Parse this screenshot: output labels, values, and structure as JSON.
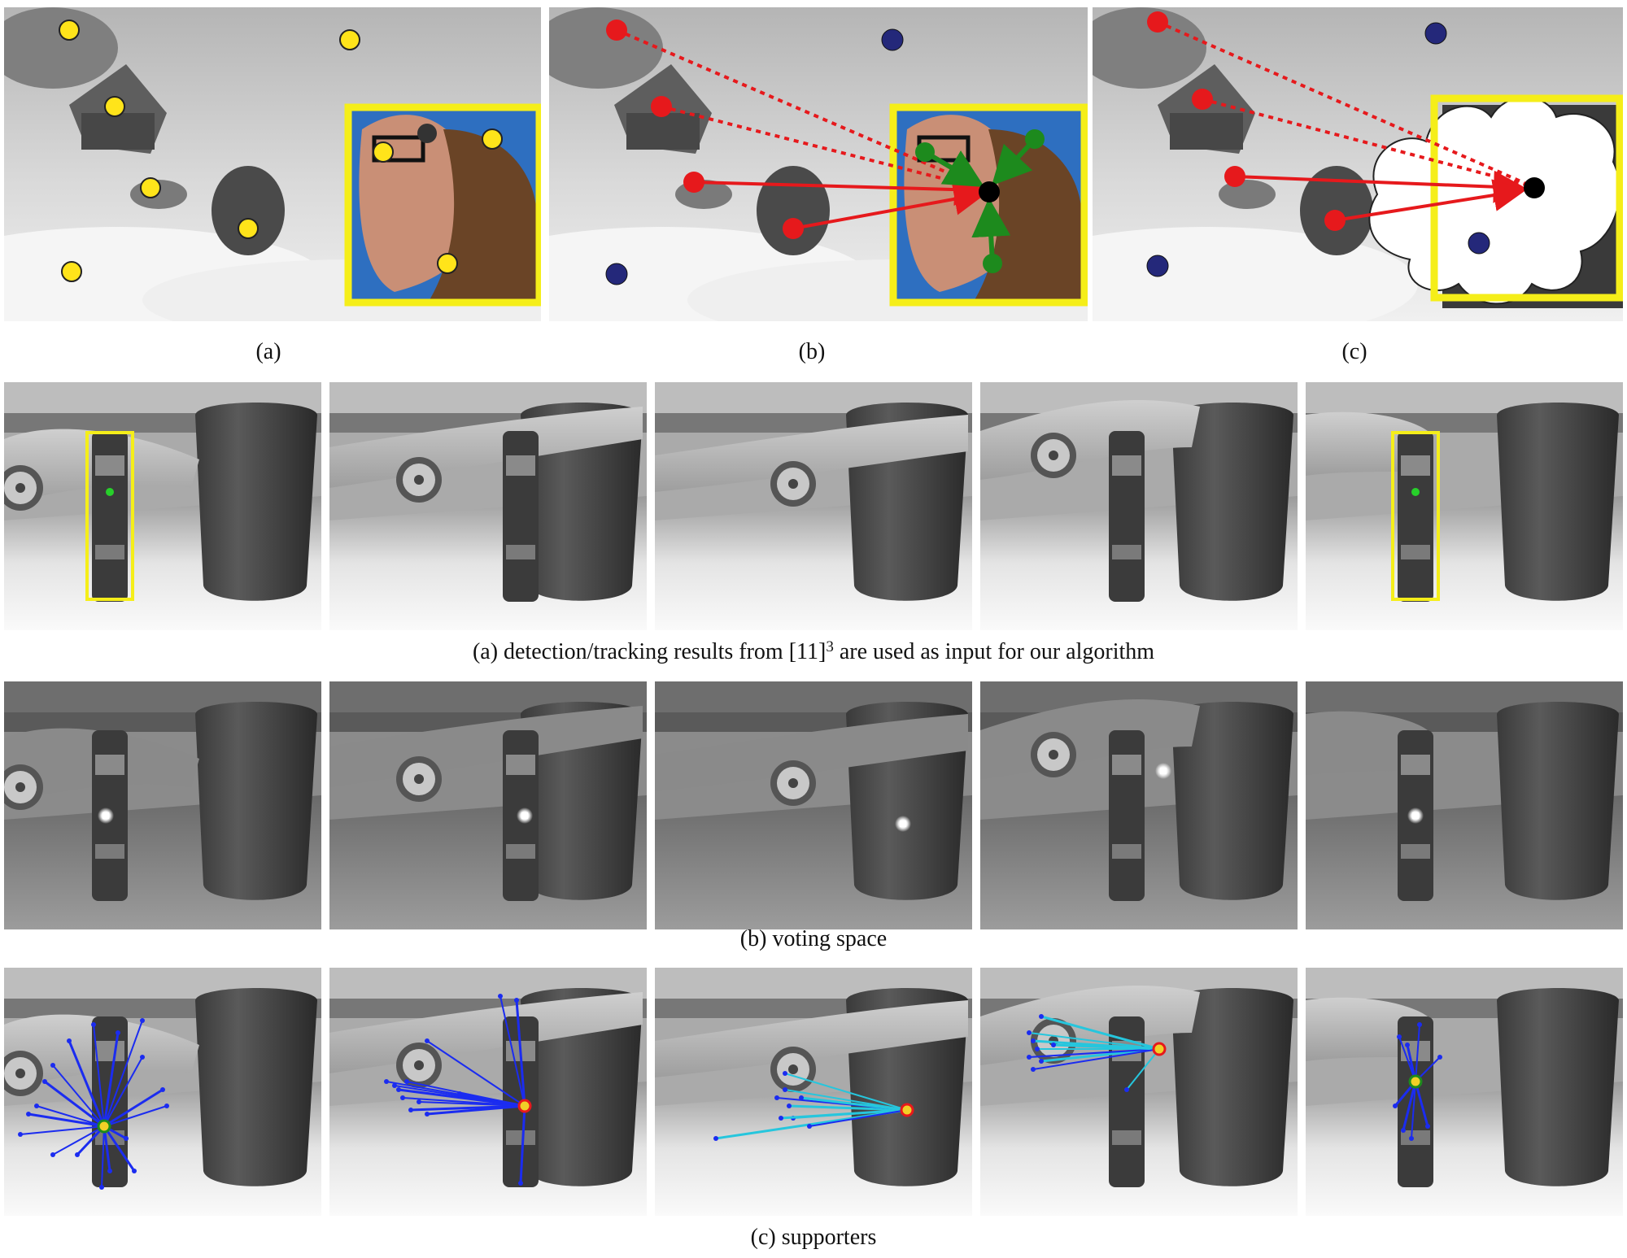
{
  "top_row": {
    "captions": [
      "(a)",
      "(b)",
      "(c)"
    ]
  },
  "sequence_rows": {
    "row_a_label": "(a)",
    "row_a_text": "detection/tracking results from [11]",
    "row_a_sup": "3",
    "row_a_text_end": "are used as input for our algorithm",
    "row_b_label": "(b)",
    "row_b_text": "voting space",
    "row_c_label": "(c)",
    "row_c_text": "supporters"
  },
  "colors": {
    "feature_yellow": "#ffe41a",
    "box_yellow": "#f5ee19",
    "outlier_blue": "#24287a",
    "supporter_red": "#e6191c",
    "object_green": "#1d8a1d",
    "ray_blue": "#1b2cf0",
    "ray_cyan": "#26c6dd"
  }
}
